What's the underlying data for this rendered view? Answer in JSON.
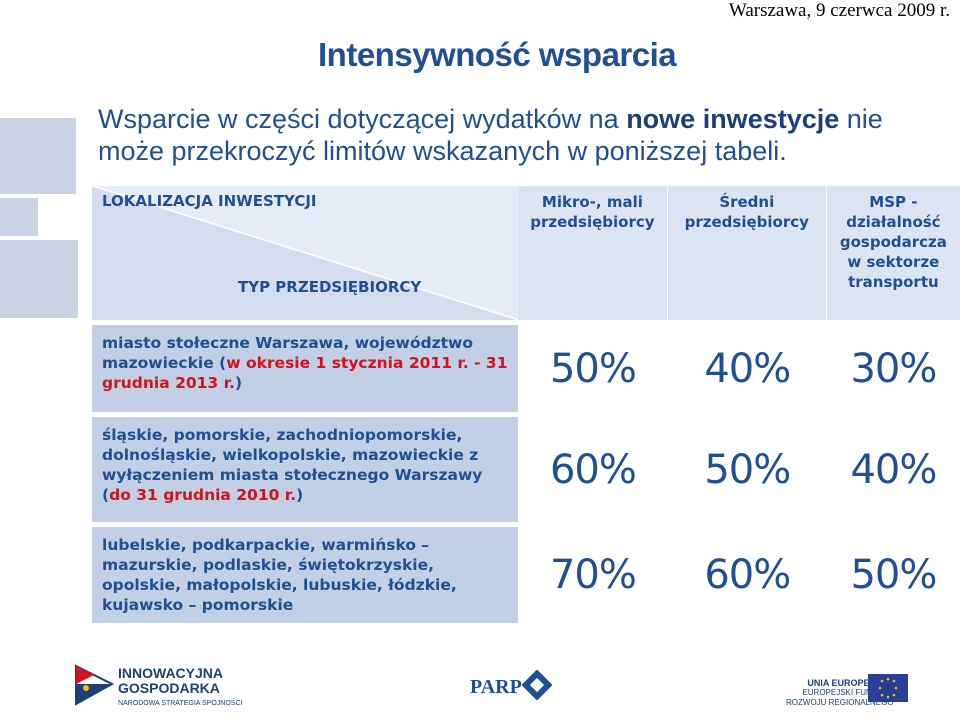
{
  "header": {
    "date": "Warszawa, 9 czerwca 2009 r.",
    "title": "Intensywność wsparcia"
  },
  "intro": {
    "part1": "Wsparcie w części dotyczącej wydatków na ",
    "bold": "nowe inwestycje",
    "part2": " nie może przekroczyć limitów wskazanych w poniższej tabeli."
  },
  "table": {
    "corner_top": "LOKALIZACJA INWESTYCJI",
    "corner_bottom": "TYP PRZEDSIĘBIORCY",
    "columns": [
      "Mikro-, mali przedsiębiorcy",
      "Średni przedsiębiorcy",
      "MSP - działalność gospodarcza w sektorze transportu"
    ],
    "rows": [
      {
        "label": "miasto stołeczne Warszawa, województwo mazowieckie (",
        "label_red": "w okresie 1 stycznia 2011 r. - 31 grudnia 2013 r.",
        "label_end": ")",
        "values": [
          "50%",
          "40%",
          "30%"
        ]
      },
      {
        "label": "śląskie, pomorskie, zachodniopomorskie, dolnośląskie, wielkopolskie, mazowieckie z wyłączeniem miasta stołecznego Warszawy (",
        "label_red": "do 31 grudnia 2010 r.",
        "label_end": ")",
        "values": [
          "60%",
          "50%",
          "40%"
        ]
      },
      {
        "label": "lubelskie, podkarpackie, warmińsko – mazurskie, podlaskie, świętokrzyskie, opolskie, małopolskie, lubuskie, łódzkie, kujawsko – pomorskie",
        "label_red": "",
        "label_end": "",
        "values": [
          "70%",
          "60%",
          "50%"
        ]
      }
    ]
  },
  "footer": {
    "ig_line1": "INNOWACYJNA",
    "ig_line2": "GOSPODARKA",
    "ig_sub": "NARODOWA STRATEGIA SPÓJNOŚCI",
    "parp": "PARP",
    "ue_line1": "UNIA EUROPEJSKA",
    "ue_line2": "EUROPEJSKI FUNDUSZ",
    "ue_line3": "ROZWOJU REGIONALNEGO"
  },
  "colors": {
    "accent": "#1f4f95",
    "highlight": "#d0131e",
    "row_bg": "#c3cfe5",
    "header_bg": "#dce4f1"
  }
}
